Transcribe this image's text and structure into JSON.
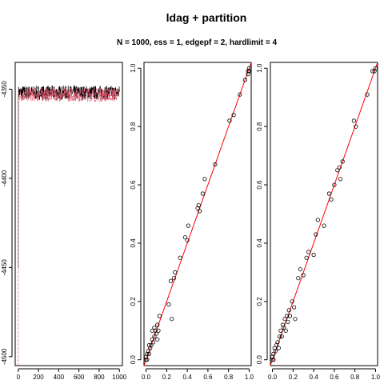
{
  "title": "ldag + partition",
  "subtitle": "N = 1000, ess = 1, edgepf = 2, hardlimit = 4",
  "chart_data": [
    {
      "type": "line",
      "title": "",
      "xlabel": "",
      "ylabel": "",
      "xlim": [
        -30,
        1030
      ],
      "ylim": [
        -4505,
        -4335
      ],
      "x_ticks": [
        0,
        200,
        400,
        600,
        800,
        1000
      ],
      "x_tick_labels": [
        "0",
        "200",
        "400",
        "600",
        "800",
        "1000"
      ],
      "y_ticks": [
        -4500,
        -4450,
        -4400,
        -4350
      ],
      "y_tick_labels": [
        "-4500",
        "-4450",
        "-4400",
        "-4350"
      ],
      "series": [
        {
          "color": "#000000",
          "style": "solid",
          "start": -4450,
          "band": [
            -4356,
            -4348
          ]
        },
        {
          "color": "#df536b",
          "style": "dashed",
          "start": -4505,
          "band": [
            -4357,
            -4349
          ]
        }
      ]
    },
    {
      "type": "scatter",
      "xlim": [
        -0.02,
        1.02
      ],
      "ylim": [
        -0.02,
        1.02
      ],
      "x_ticks": [
        0.0,
        0.2,
        0.4,
        0.6,
        0.8,
        1.0
      ],
      "x_tick_labels": [
        "0.0",
        "0.2",
        "0.4",
        "0.6",
        "0.8",
        "1.0"
      ],
      "y_ticks": [
        0.0,
        0.2,
        0.4,
        0.6,
        0.8,
        1.0
      ],
      "y_tick_labels": [
        "0.0",
        "0.2",
        "0.4",
        "0.6",
        "0.8",
        "1.0"
      ],
      "reference_line": {
        "type": "y=x",
        "color": "#ff0000"
      },
      "points": [
        [
          0,
          0
        ],
        [
          0,
          0.01
        ],
        [
          0.01,
          0
        ],
        [
          0.01,
          0.02
        ],
        [
          0.02,
          0.03
        ],
        [
          0.03,
          0.02
        ],
        [
          0.03,
          0.05
        ],
        [
          0.04,
          0.04
        ],
        [
          0.05,
          0.05
        ],
        [
          0.06,
          0.07
        ],
        [
          0.06,
          0.1
        ],
        [
          0.07,
          0.06
        ],
        [
          0.08,
          0.08
        ],
        [
          0.08,
          0.11
        ],
        [
          0.09,
          0.1
        ],
        [
          0.1,
          0.09
        ],
        [
          0.11,
          0.07
        ],
        [
          0.11,
          0.12
        ],
        [
          0.12,
          0.1
        ],
        [
          0.13,
          0.15
        ],
        [
          0.22,
          0.19
        ],
        [
          0.24,
          0.27
        ],
        [
          0.25,
          0.14
        ],
        [
          0.27,
          0.28
        ],
        [
          0.28,
          0.3
        ],
        [
          0.33,
          0.35
        ],
        [
          0.38,
          0.42
        ],
        [
          0.4,
          0.41
        ],
        [
          0.41,
          0.46
        ],
        [
          0.5,
          0.52
        ],
        [
          0.51,
          0.53
        ],
        [
          0.52,
          0.51
        ],
        [
          0.55,
          0.57
        ],
        [
          0.57,
          0.62
        ],
        [
          0.67,
          0.67
        ],
        [
          0.81,
          0.82
        ],
        [
          0.85,
          0.84
        ],
        [
          0.91,
          0.91
        ],
        [
          0.96,
          0.96
        ],
        [
          0.99,
          0.98
        ],
        [
          0.99,
          0.99
        ],
        [
          1,
          1
        ],
        [
          1,
          0.99
        ]
      ]
    },
    {
      "type": "scatter",
      "xlim": [
        -0.02,
        1.02
      ],
      "ylim": [
        -0.02,
        1.02
      ],
      "x_ticks": [
        0.0,
        0.2,
        0.4,
        0.6,
        0.8,
        1.0
      ],
      "x_tick_labels": [
        "0.0",
        "0.2",
        "0.4",
        "0.6",
        "0.8",
        "1.0"
      ],
      "y_ticks": [
        0.0,
        0.2,
        0.4,
        0.6,
        0.8,
        1.0
      ],
      "y_tick_labels": [
        "0.0",
        "0.2",
        "0.4",
        "0.6",
        "0.8",
        "1.0"
      ],
      "reference_line": {
        "type": "y=x",
        "color": "#ff0000"
      },
      "points": [
        [
          0,
          0
        ],
        [
          0,
          0.01
        ],
        [
          0.01,
          0
        ],
        [
          0.01,
          0.02
        ],
        [
          0.02,
          0.04
        ],
        [
          0.03,
          0.03
        ],
        [
          0.04,
          0.05
        ],
        [
          0.05,
          0.06
        ],
        [
          0.06,
          0.04
        ],
        [
          0.07,
          0.08
        ],
        [
          0.08,
          0.1
        ],
        [
          0.09,
          0.08
        ],
        [
          0.1,
          0.12
        ],
        [
          0.11,
          0.11
        ],
        [
          0.12,
          0.14
        ],
        [
          0.13,
          0.1
        ],
        [
          0.14,
          0.15
        ],
        [
          0.15,
          0.13
        ],
        [
          0.16,
          0.17
        ],
        [
          0.17,
          0.15
        ],
        [
          0.19,
          0.2
        ],
        [
          0.21,
          0.18
        ],
        [
          0.22,
          0.14
        ],
        [
          0.25,
          0.28
        ],
        [
          0.27,
          0.31
        ],
        [
          0.3,
          0.29
        ],
        [
          0.33,
          0.35
        ],
        [
          0.35,
          0.37
        ],
        [
          0.4,
          0.36
        ],
        [
          0.42,
          0.43
        ],
        [
          0.44,
          0.48
        ],
        [
          0.5,
          0.46
        ],
        [
          0.55,
          0.57
        ],
        [
          0.57,
          0.55
        ],
        [
          0.6,
          0.6
        ],
        [
          0.63,
          0.65
        ],
        [
          0.65,
          0.66
        ],
        [
          0.66,
          0.62
        ],
        [
          0.68,
          0.68
        ],
        [
          0.79,
          0.82
        ],
        [
          0.81,
          0.8
        ],
        [
          0.92,
          0.91
        ],
        [
          0.97,
          0.99
        ],
        [
          0.99,
          0.99
        ],
        [
          1,
          1
        ]
      ]
    }
  ]
}
